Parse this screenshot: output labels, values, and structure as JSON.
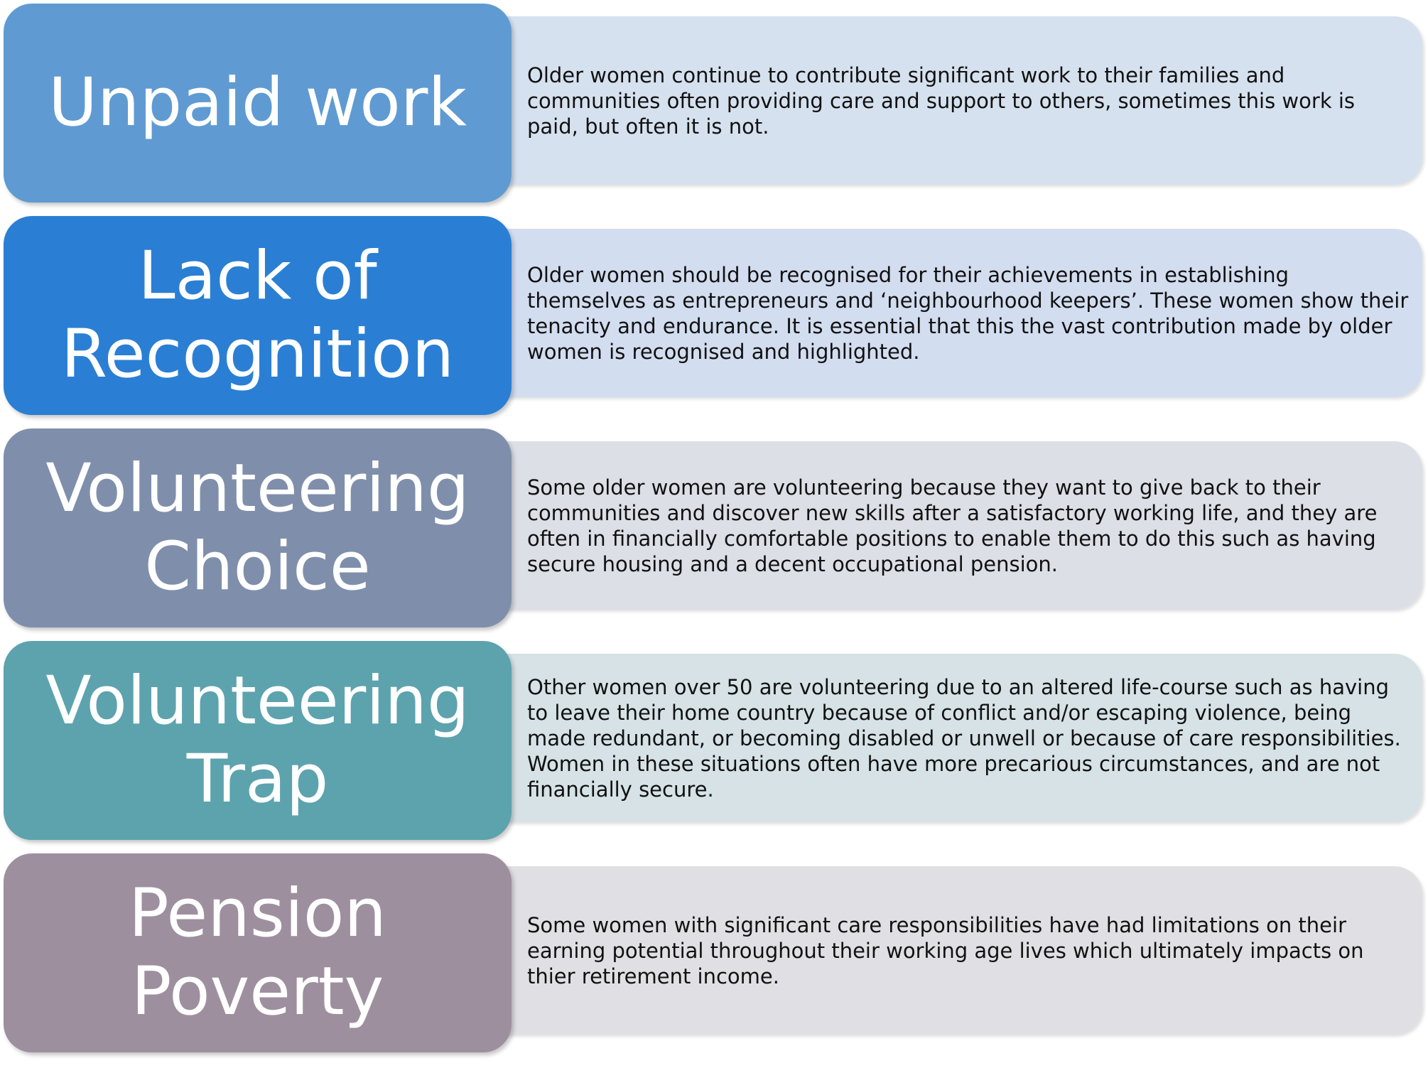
{
  "rows": [
    {
      "title": "Unpaid work",
      "text": "Older women continue to contribute significant work to their families and communities often providing care and support to others, sometimes this work is paid, but often it is not.",
      "head_color": "#5f9bd2",
      "desc_color": "#d6e1ef"
    },
    {
      "title": "Lack of Recognition",
      "text": "Older women should be recognised for their achievements in establishing themselves as entrepreneurs and ‘neighbourhood keepers’. These women show their tenacity and endurance. It is essential that this the vast contribution made by older women is recognised and highlighted.",
      "head_color": "#2a7fd4",
      "desc_color": "#d3ddf0"
    },
    {
      "title": "Volunteering Choice",
      "text": "Some older women are volunteering because they want to give back to their communities and discover new skills after a satisfactory working life, and they are often in financially comfortable positions to enable them to do this such as having secure housing and a decent occupational pension.",
      "head_color": "#7f8fab",
      "desc_color": "#dcdfe6"
    },
    {
      "title": "Volunteering Trap",
      "text": "Other women over 50 are volunteering due to an altered life-course such as having to leave their home country because of conflict and/or escaping violence, being made redundant, or becoming disabled or unwell or because of care responsibilities. Women in these situations often have more precarious circumstances, and are not financially secure.",
      "head_color": "#5ca3ae",
      "desc_color": "#d6e2e6"
    },
    {
      "title": "Pension Poverty",
      "text": "Some women with significant care responsibilities have had limitations on their earning potential throughout their working age lives which ultimately impacts on thier retirement income.",
      "head_color": "#9e8f9f",
      "desc_color": "#e0dfe3"
    }
  ]
}
